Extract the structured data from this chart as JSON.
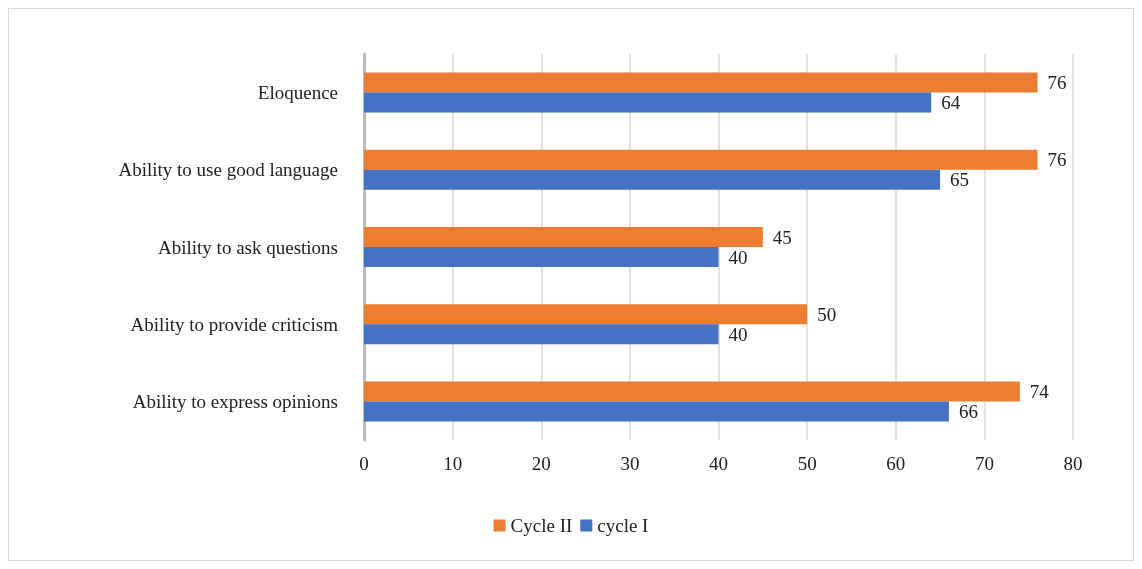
{
  "chart_data": {
    "type": "bar",
    "orientation": "horizontal",
    "categories": [
      "Eloquence",
      "Ability to use good language",
      "Ability to ask questions",
      "Ability to provide criticism",
      "Ability to express opinions"
    ],
    "series": [
      {
        "name": "Cycle II",
        "color": "#ed7d31",
        "values": [
          76,
          76,
          45,
          50,
          74
        ]
      },
      {
        "name": "cycle I",
        "color": "#4472c4",
        "values": [
          64,
          65,
          40,
          40,
          66
        ]
      }
    ],
    "xlim": [
      0,
      80
    ],
    "xticks": [
      0,
      10,
      20,
      30,
      40,
      50,
      60,
      70,
      80
    ],
    "grid": "x",
    "legend": "bottom",
    "data_labels": true
  }
}
